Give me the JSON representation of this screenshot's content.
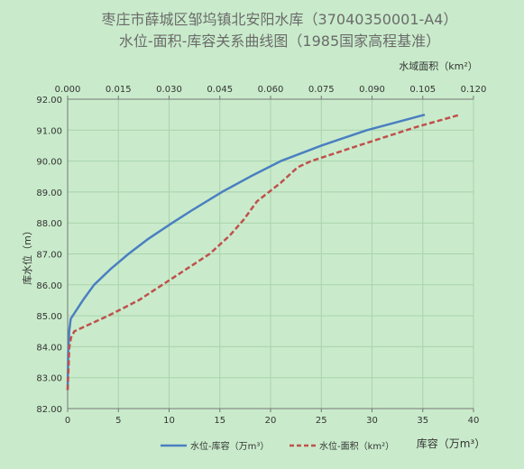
{
  "chart_data": {
    "type": "line",
    "title": "枣庄市薛城区邹坞镇北安阳水库（37040350001-A4）",
    "subtitle": "水位-面积-库容关系曲线图（1985国家高程基准）",
    "ylabel": "库水位（m）",
    "xlabel_bottom": "库容（万m³）",
    "xlabel_top": "水域面积（km²）",
    "ylim": [
      82.0,
      92.0
    ],
    "y_ticks": [
      "82.00",
      "83.00",
      "84.00",
      "85.00",
      "86.00",
      "87.00",
      "88.00",
      "89.00",
      "90.00",
      "91.00",
      "92.00"
    ],
    "x_bottom_lim": [
      0,
      40
    ],
    "x_bottom_ticks": [
      "0",
      "5",
      "10",
      "15",
      "20",
      "25",
      "30",
      "35",
      "40"
    ],
    "x_top_lim": [
      0.0,
      0.12
    ],
    "x_top_ticks": [
      "0.000",
      "0.015",
      "0.030",
      "0.045",
      "0.060",
      "0.075",
      "0.090",
      "0.105",
      "0.120"
    ],
    "grid": true,
    "legend_position": "bottom",
    "series": [
      {
        "name": "水位-库容（万m³）",
        "axis": "bottom",
        "style": "solid",
        "color": "#4a7fc1",
        "points": [
          [
            0.0,
            82.6
          ],
          [
            0.05,
            83.8
          ],
          [
            0.15,
            84.5
          ],
          [
            0.3,
            84.9
          ],
          [
            1.5,
            85.5
          ],
          [
            2.6,
            86.0
          ],
          [
            4.2,
            86.5
          ],
          [
            6.0,
            87.0
          ],
          [
            8.0,
            87.5
          ],
          [
            10.3,
            88.0
          ],
          [
            12.2,
            88.4
          ],
          [
            15.2,
            89.0
          ],
          [
            18.0,
            89.5
          ],
          [
            21.0,
            90.0
          ],
          [
            25.0,
            90.5
          ],
          [
            29.5,
            91.0
          ],
          [
            35.2,
            91.5
          ]
        ]
      },
      {
        "name": "水位-面积（km²）",
        "axis": "top",
        "style": "dashed",
        "color": "#c0504d",
        "points": [
          [
            0.0,
            82.6
          ],
          [
            0.0005,
            84.0
          ],
          [
            0.001,
            84.3
          ],
          [
            0.002,
            84.5
          ],
          [
            0.012,
            85.0
          ],
          [
            0.021,
            85.5
          ],
          [
            0.028,
            86.0
          ],
          [
            0.035,
            86.5
          ],
          [
            0.042,
            87.0
          ],
          [
            0.048,
            87.6
          ],
          [
            0.052,
            88.1
          ],
          [
            0.056,
            88.7
          ],
          [
            0.063,
            89.3
          ],
          [
            0.068,
            89.8
          ],
          [
            0.072,
            90.0
          ],
          [
            0.086,
            90.5
          ],
          [
            0.103,
            91.1
          ],
          [
            0.116,
            91.5
          ]
        ]
      }
    ]
  }
}
